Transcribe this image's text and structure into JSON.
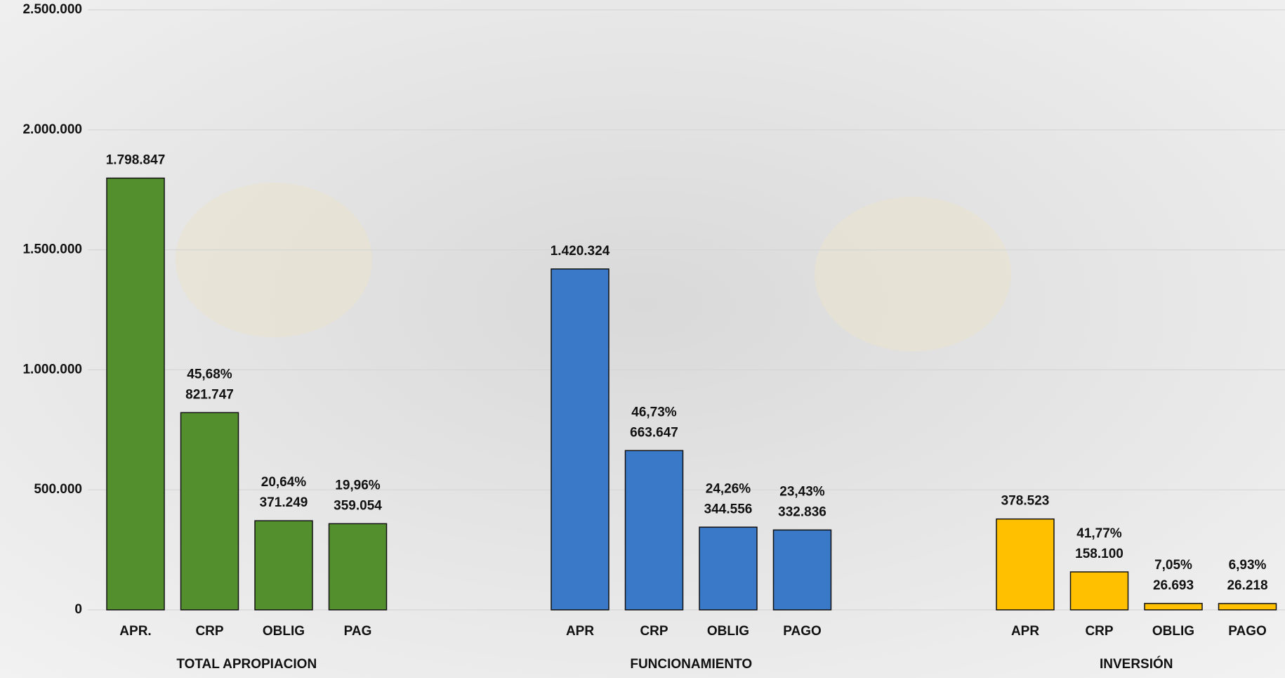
{
  "chart_data": {
    "type": "bar",
    "ylim": [
      0,
      2500000
    ],
    "yticks": [
      0,
      {
        "value": 500000,
        "label": "500.000"
      },
      {
        "value": 1000000,
        "label": "1.000.000"
      },
      {
        "value": 1500000,
        "label": "1.500.000"
      },
      {
        "value": 2000000,
        "label": "2.000.000"
      },
      {
        "value": 2500000,
        "label": "2.500.000"
      }
    ],
    "grid": true,
    "groups": [
      {
        "name": "TOTAL APROPIACION",
        "color": "#548f2e",
        "categories": [
          "APR.",
          "CRP",
          "OBLIG",
          "PAG"
        ],
        "values": [
          1798847,
          821747,
          371249,
          359054
        ],
        "value_labels": [
          "1.798.847",
          "821.747",
          "371.249",
          "359.054"
        ],
        "share_labels": [
          null,
          "45,68%",
          "20,64%",
          "19,96%"
        ]
      },
      {
        "name": "FUNCIONAMIENTO",
        "color": "#3a78c8",
        "categories": [
          "APR",
          "CRP",
          "OBLIG",
          "PAGO"
        ],
        "values": [
          1420324,
          663647,
          344556,
          332836
        ],
        "value_labels": [
          "1.420.324",
          "663.647",
          "344.556",
          "332.836"
        ],
        "share_labels": [
          null,
          "46,73%",
          "24,26%",
          "23,43%"
        ]
      },
      {
        "name": "INVERSIÓN",
        "color": "#ffc000",
        "categories": [
          "APR",
          "CRP",
          "OBLIG",
          "PAGO"
        ],
        "values": [
          378523,
          158100,
          26693,
          26218
        ],
        "value_labels": [
          "378.523",
          "158.100",
          "26.693",
          "26.218"
        ],
        "share_labels": [
          null,
          "41,77%",
          "7,05%",
          "6,93%"
        ]
      }
    ]
  }
}
